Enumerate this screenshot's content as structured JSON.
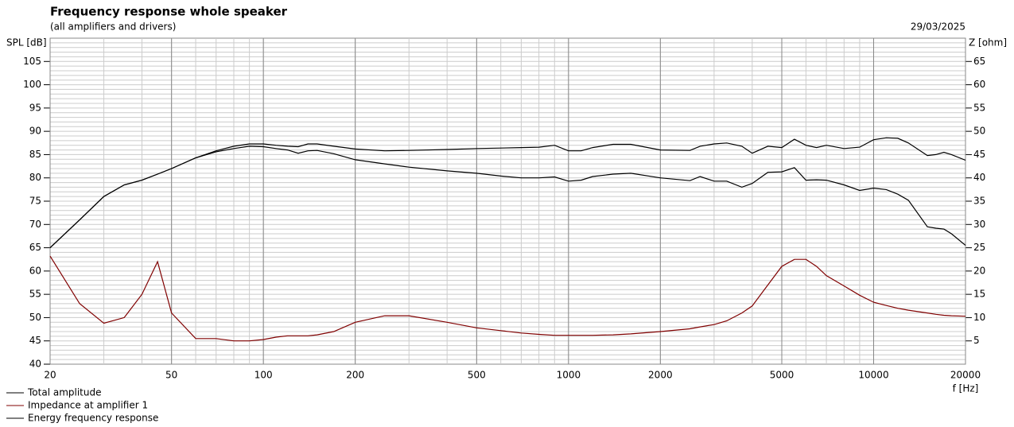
{
  "chart_data": {
    "type": "line",
    "title": "Frequency response whole speaker",
    "subtitle": "(all amplifiers and drivers)",
    "date": "29/03/2025",
    "y_label": "SPL [dB]",
    "y2_label": "Z [ohm]",
    "x_label": "f [Hz]",
    "log_x": true,
    "grid": true,
    "xlim": [
      20,
      20000
    ],
    "xticks": [
      20,
      50,
      100,
      200,
      500,
      1000,
      2000,
      5000,
      10000,
      20000
    ],
    "ylim": [
      40,
      110
    ],
    "yticks": [
      40,
      45,
      50,
      55,
      60,
      65,
      70,
      75,
      80,
      85,
      90,
      95,
      100,
      105
    ],
    "y2lim": [
      0,
      70
    ],
    "y2ticks": [
      5,
      10,
      15,
      20,
      25,
      30,
      35,
      40,
      45,
      50,
      55,
      60,
      65
    ],
    "x": [
      20,
      25,
      30,
      35,
      40,
      45,
      50,
      60,
      70,
      80,
      90,
      100,
      110,
      120,
      130,
      140,
      150,
      170,
      200,
      250,
      300,
      400,
      500,
      600,
      700,
      800,
      900,
      1000,
      1100,
      1200,
      1400,
      1600,
      2000,
      2500,
      2700,
      3000,
      3300,
      3700,
      4000,
      4500,
      5000,
      5500,
      6000,
      6500,
      7000,
      8000,
      9000,
      10000,
      11000,
      12000,
      13000,
      15000,
      16000,
      17000,
      18000,
      20000
    ],
    "series": [
      {
        "name": "Total amplitude",
        "color": "#000000",
        "values": [
          65,
          71,
          76,
          78.5,
          79.5,
          80.8,
          82,
          84.3,
          85.8,
          86.8,
          87.3,
          87.3,
          87,
          86.8,
          86.7,
          87.3,
          87.3,
          86.8,
          86.2,
          85.8,
          85.9,
          86.1,
          86.3,
          86.4,
          86.5,
          86.6,
          87,
          85.8,
          85.8,
          86.5,
          87.2,
          87.2,
          86,
          85.9,
          86.8,
          87.3,
          87.5,
          86.8,
          85.3,
          86.8,
          86.5,
          88.3,
          87,
          86.5,
          87,
          86.3,
          86.6,
          88.2,
          88.6,
          88.5,
          87.5,
          84.8,
          85,
          85.5,
          85,
          83.8
        ]
      },
      {
        "name": "Impedance at amplifier 1",
        "color": "#800000",
        "axis": "y2",
        "values": [
          23.2,
          13,
          8.8,
          10,
          15,
          22,
          11,
          5.5,
          5.5,
          5,
          5,
          5.3,
          5.8,
          6.1,
          6.1,
          6.1,
          6.3,
          7,
          9,
          10.4,
          10.4,
          9,
          7.8,
          7.2,
          6.7,
          6.4,
          6.2,
          6.2,
          6.2,
          6.2,
          6.3,
          6.5,
          7,
          7.6,
          8,
          8.5,
          9.3,
          11,
          12.5,
          17,
          21,
          22.5,
          22.5,
          21,
          19,
          16.8,
          14.8,
          13.3,
          12.6,
          12,
          11.6,
          11,
          10.7,
          10.5,
          10.4,
          10.3
        ]
      },
      {
        "name": "Energy frequency response",
        "color": "#000000",
        "values": [
          65,
          71,
          76,
          78.5,
          79.5,
          80.8,
          82,
          84.3,
          85.6,
          86.3,
          86.8,
          86.7,
          86.3,
          86,
          85.3,
          85.8,
          85.9,
          85.2,
          83.9,
          83,
          82.3,
          81.5,
          81,
          80.4,
          80,
          80,
          80.2,
          79.3,
          79.5,
          80.3,
          80.8,
          81,
          80,
          79.4,
          80.3,
          79.3,
          79.3,
          78,
          78.8,
          81.2,
          81.3,
          82.2,
          79.5,
          79.6,
          79.5,
          78.5,
          77.3,
          77.8,
          77.5,
          76.5,
          75.2,
          69.5,
          69.2,
          69,
          68,
          65.5
        ]
      }
    ]
  }
}
